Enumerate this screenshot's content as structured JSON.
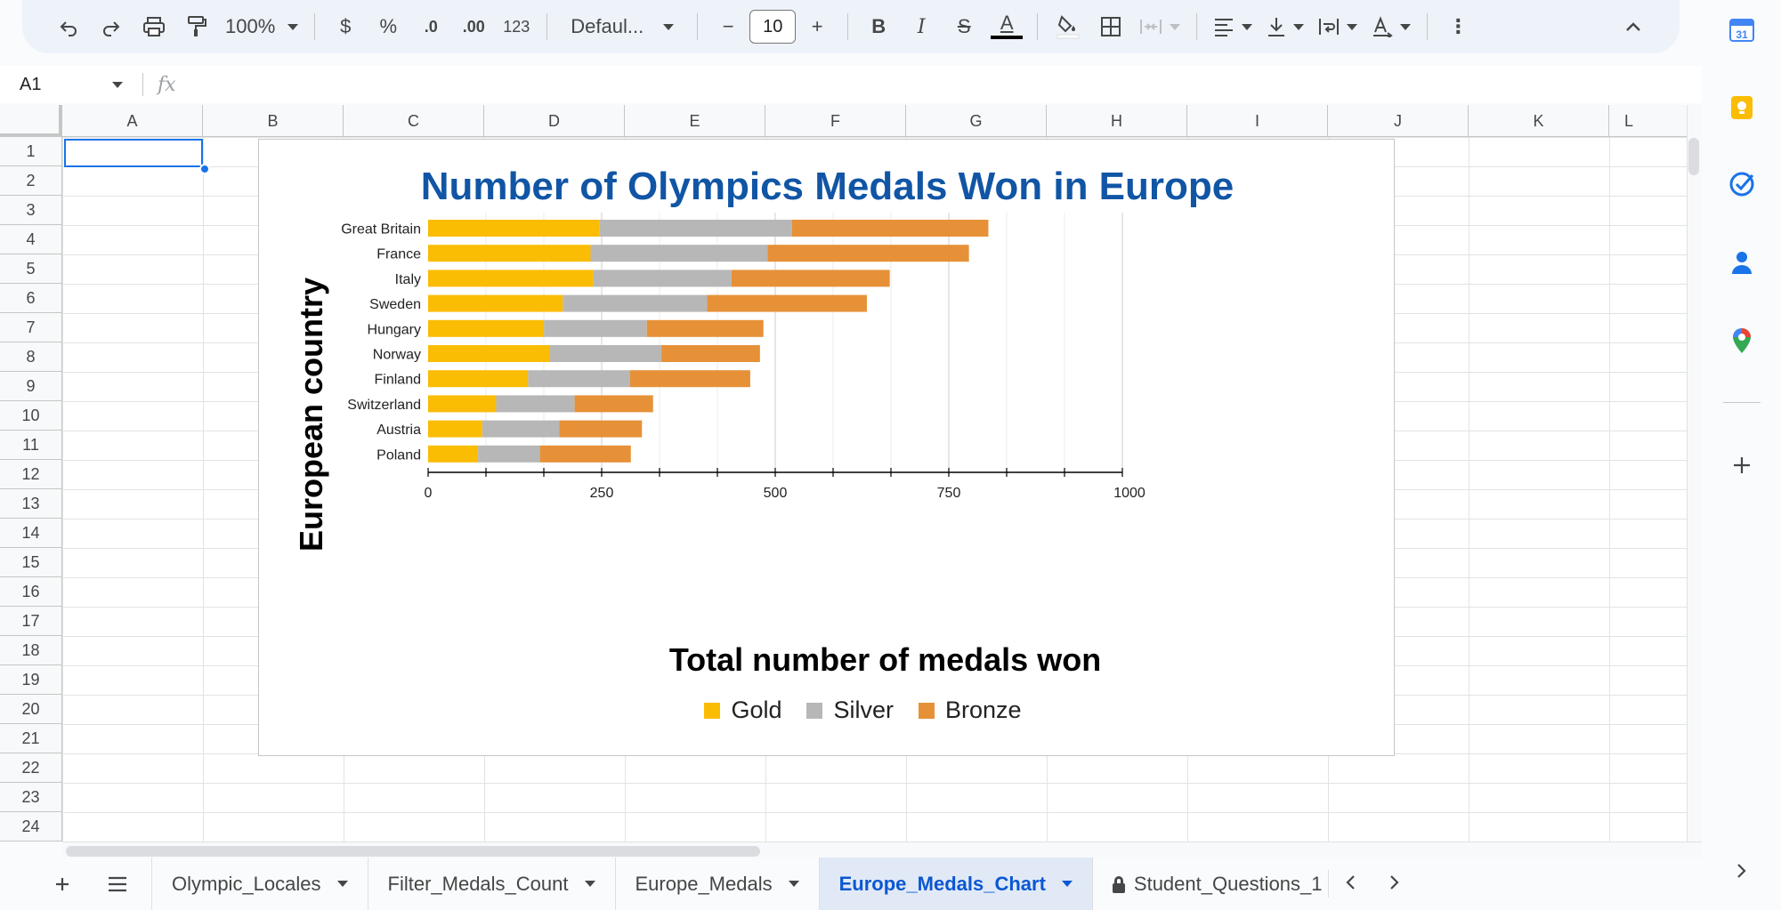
{
  "toolbar": {
    "zoom": "100%",
    "currency_label": "$",
    "percent_label": "%",
    "decrease_decimal_label": ".0",
    "increase_decimal_label": ".00",
    "number_format_label": "123",
    "font_name": "Defaul...",
    "font_size": "10",
    "minus_label": "−",
    "plus_label": "+",
    "bold_label": "B",
    "italic_label": "I",
    "strike_label": "S",
    "text_color_label": "A",
    "more_label": "⋮"
  },
  "formula_bar": {
    "cell_ref": "A1",
    "fx_label": "fx"
  },
  "grid": {
    "columns": [
      "A",
      "B",
      "C",
      "D",
      "E",
      "F",
      "G",
      "H",
      "I",
      "J",
      "K",
      "L"
    ],
    "rows": [
      "1",
      "2",
      "3",
      "4",
      "5",
      "6",
      "7",
      "8",
      "9",
      "10",
      "11",
      "12",
      "13",
      "14",
      "15",
      "16",
      "17",
      "18",
      "19",
      "20",
      "21",
      "22",
      "23",
      "24"
    ]
  },
  "chart_data": {
    "type": "bar",
    "orientation": "horizontal",
    "stacked": true,
    "title": "Number of Olympics Medals Won in Europe",
    "xlabel": "Total number of medals won",
    "ylabel": "European country",
    "xlim": [
      0,
      1000
    ],
    "xticks": [
      "0",
      "250",
      "500",
      "750",
      "1000"
    ],
    "grid": true,
    "legend_position": "bottom",
    "categories": [
      "Great Britain",
      "France",
      "Italy",
      "Sweden",
      "Hungary",
      "Norway",
      "Finland",
      "Switzerland",
      "Austria",
      "Poland"
    ],
    "series": [
      {
        "name": "Gold",
        "color": "#fbbc04",
        "values": [
          247,
          234,
          238,
          194,
          167,
          175,
          144,
          98,
          78,
          72
        ]
      },
      {
        "name": "Silver",
        "color": "#b7b7b7",
        "values": [
          277,
          255,
          199,
          208,
          148,
          161,
          147,
          113,
          111,
          89
        ]
      },
      {
        "name": "Bronze",
        "color": "#e69138",
        "values": [
          283,
          290,
          228,
          230,
          168,
          142,
          173,
          113,
          119,
          131
        ]
      }
    ]
  },
  "sheets": {
    "tabs": [
      {
        "label": "Olympic_Locales",
        "active": false,
        "locked": false
      },
      {
        "label": "Filter_Medals_Count",
        "active": false,
        "locked": false
      },
      {
        "label": "Europe_Medals",
        "active": false,
        "locked": false
      },
      {
        "label": "Europe_Medals_Chart",
        "active": true,
        "locked": false
      },
      {
        "label": "Student_Questions_1",
        "active": false,
        "locked": true
      }
    ]
  },
  "side_panel": {
    "calendar_label": "31"
  }
}
